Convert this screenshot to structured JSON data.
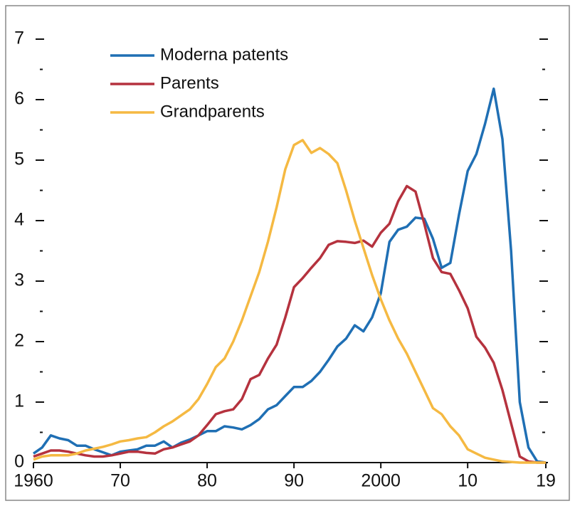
{
  "chart_data": {
    "type": "line",
    "x": [
      1960,
      1961,
      1962,
      1963,
      1964,
      1965,
      1966,
      1967,
      1968,
      1969,
      1970,
      1971,
      1972,
      1973,
      1974,
      1975,
      1976,
      1977,
      1978,
      1979,
      1980,
      1981,
      1982,
      1983,
      1984,
      1985,
      1986,
      1987,
      1988,
      1989,
      1990,
      1991,
      1992,
      1993,
      1994,
      1995,
      1996,
      1997,
      1998,
      1999,
      2000,
      2001,
      2002,
      2003,
      2004,
      2005,
      2006,
      2007,
      2008,
      2009,
      2010,
      2011,
      2012,
      2013,
      2014,
      2015,
      2016,
      2017,
      2018,
      2019
    ],
    "series": [
      {
        "name": "Moderna patents",
        "color": "#1f6fb4",
        "values": [
          0.15,
          0.25,
          0.45,
          0.4,
          0.37,
          0.28,
          0.28,
          0.22,
          0.17,
          0.12,
          0.18,
          0.2,
          0.22,
          0.28,
          0.28,
          0.35,
          0.25,
          0.33,
          0.38,
          0.45,
          0.52,
          0.52,
          0.6,
          0.58,
          0.55,
          0.62,
          0.72,
          0.88,
          0.95,
          1.1,
          1.25,
          1.25,
          1.35,
          1.5,
          1.7,
          1.92,
          2.05,
          2.27,
          2.17,
          2.4,
          2.8,
          3.65,
          3.85,
          3.9,
          4.05,
          4.03,
          3.7,
          3.22,
          3.3,
          4.1,
          4.82,
          5.1,
          5.6,
          6.18,
          5.35,
          3.5,
          1.0,
          0.25,
          0.02,
          0
        ]
      },
      {
        "name": "Parents",
        "color": "#b5323e",
        "values": [
          0.1,
          0.15,
          0.2,
          0.2,
          0.18,
          0.15,
          0.12,
          0.1,
          0.1,
          0.12,
          0.15,
          0.18,
          0.18,
          0.16,
          0.15,
          0.22,
          0.25,
          0.3,
          0.35,
          0.45,
          0.62,
          0.8,
          0.85,
          0.88,
          1.05,
          1.38,
          1.45,
          1.72,
          1.95,
          2.4,
          2.9,
          3.05,
          3.22,
          3.38,
          3.6,
          3.66,
          3.65,
          3.63,
          3.67,
          3.57,
          3.8,
          3.95,
          4.32,
          4.57,
          4.48,
          3.95,
          3.38,
          3.15,
          3.12,
          2.85,
          2.55,
          2.08,
          1.9,
          1.65,
          1.2,
          0.65,
          0.1,
          0.02,
          0,
          0
        ]
      },
      {
        "name": "Grandparents",
        "color": "#f5b942",
        "values": [
          0.05,
          0.1,
          0.12,
          0.12,
          0.12,
          0.15,
          0.2,
          0.23,
          0.26,
          0.3,
          0.35,
          0.37,
          0.4,
          0.42,
          0.5,
          0.6,
          0.68,
          0.78,
          0.88,
          1.05,
          1.3,
          1.58,
          1.72,
          2.0,
          2.35,
          2.75,
          3.15,
          3.65,
          4.22,
          4.85,
          5.25,
          5.33,
          5.12,
          5.2,
          5.1,
          4.95,
          4.5,
          4.0,
          3.55,
          3.1,
          2.7,
          2.35,
          2.05,
          1.8,
          1.5,
          1.2,
          0.9,
          0.8,
          0.6,
          0.45,
          0.22,
          0.15,
          0.08,
          0.05,
          0.02,
          0.01,
          0,
          0,
          0,
          0
        ]
      }
    ],
    "xlim": [
      1960,
      2019
    ],
    "xticks": [
      1960,
      {
        "value": 1970,
        "label": "70"
      },
      {
        "value": 1980,
        "label": "80"
      },
      {
        "value": 1990,
        "label": "90"
      },
      2000,
      {
        "value": 2010,
        "label": "10"
      },
      {
        "value": 2019,
        "label": "19"
      }
    ],
    "ylim": [
      0,
      7
    ],
    "yticks": [
      0,
      1,
      2,
      3,
      4,
      5,
      6,
      7
    ],
    "yminorticks": [
      0.5,
      1.5,
      2.5,
      3.5,
      4.5,
      5.5,
      6.5
    ],
    "legend": "upper left"
  }
}
